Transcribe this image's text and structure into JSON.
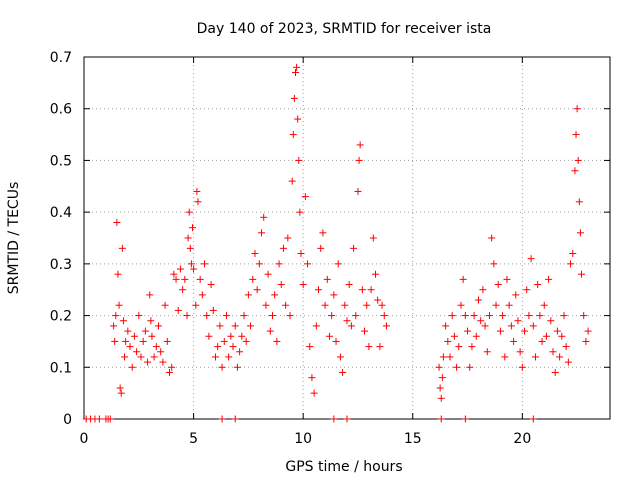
{
  "chart_data": {
    "type": "scatter",
    "title": "Day 140 of 2023, SRMTID for receiver ista",
    "xlabel": "GPS time / hours",
    "ylabel": "SRMTID / TECUs",
    "xlim": [
      0,
      24
    ],
    "ylim": [
      0,
      0.7
    ],
    "xticks": [
      "0",
      "5",
      "10",
      "15",
      "20"
    ],
    "yticks": [
      "0",
      "0.1",
      "0.2",
      "0.3",
      "0.4",
      "0.5",
      "0.6",
      "0.7"
    ],
    "grid": true,
    "marker": "+",
    "color": "#ff0000",
    "series": [
      {
        "name": "SRMTID",
        "points": [
          [
            0.1,
            0
          ],
          [
            0.3,
            0
          ],
          [
            0.5,
            0
          ],
          [
            0.7,
            0
          ],
          [
            1.0,
            0
          ],
          [
            1.1,
            0
          ],
          [
            1.2,
            0
          ],
          [
            1.35,
            0.18
          ],
          [
            1.4,
            0.15
          ],
          [
            1.45,
            0.2
          ],
          [
            1.5,
            0.38
          ],
          [
            1.55,
            0.28
          ],
          [
            1.6,
            0.22
          ],
          [
            1.65,
            0.06
          ],
          [
            1.7,
            0.05
          ],
          [
            1.75,
            0.33
          ],
          [
            1.8,
            0.19
          ],
          [
            1.85,
            0.12
          ],
          [
            1.9,
            0.15
          ],
          [
            2.0,
            0.17
          ],
          [
            2.1,
            0.14
          ],
          [
            2.2,
            0.1
          ],
          [
            2.3,
            0.16
          ],
          [
            2.4,
            0.13
          ],
          [
            2.5,
            0.2
          ],
          [
            2.6,
            0.12
          ],
          [
            2.7,
            0.15
          ],
          [
            2.8,
            0.17
          ],
          [
            2.9,
            0.11
          ],
          [
            3.0,
            0.24
          ],
          [
            3.05,
            0.19
          ],
          [
            3.1,
            0.16
          ],
          [
            3.2,
            0.12
          ],
          [
            3.3,
            0.14
          ],
          [
            3.4,
            0.18
          ],
          [
            3.5,
            0.13
          ],
          [
            3.6,
            0.11
          ],
          [
            3.7,
            0.22
          ],
          [
            3.8,
            0.15
          ],
          [
            3.9,
            0.09
          ],
          [
            4.0,
            0.1
          ],
          [
            4.1,
            0.28
          ],
          [
            4.2,
            0.27
          ],
          [
            4.3,
            0.21
          ],
          [
            4.4,
            0.29
          ],
          [
            4.5,
            0.25
          ],
          [
            4.6,
            0.27
          ],
          [
            4.7,
            0.2
          ],
          [
            4.75,
            0.35
          ],
          [
            4.8,
            0.4
          ],
          [
            4.85,
            0.33
          ],
          [
            4.9,
            0.3
          ],
          [
            4.95,
            0.37
          ],
          [
            5.0,
            0.29
          ],
          [
            5.1,
            0.22
          ],
          [
            5.15,
            0.44
          ],
          [
            5.2,
            0.42
          ],
          [
            5.3,
            0.27
          ],
          [
            5.4,
            0.24
          ],
          [
            5.5,
            0.3
          ],
          [
            5.6,
            0.2
          ],
          [
            5.7,
            0.16
          ],
          [
            5.8,
            0.26
          ],
          [
            5.9,
            0.21
          ],
          [
            6.0,
            0.12
          ],
          [
            6.1,
            0.14
          ],
          [
            6.2,
            0.18
          ],
          [
            6.3,
            0.1
          ],
          [
            6.4,
            0.15
          ],
          [
            6.5,
            0.2
          ],
          [
            6.6,
            0.12
          ],
          [
            6.7,
            0.16
          ],
          [
            6.8,
            0.14
          ],
          [
            6.9,
            0.18
          ],
          [
            7.0,
            0.1
          ],
          [
            7.1,
            0.13
          ],
          [
            7.2,
            0.16
          ],
          [
            7.3,
            0.2
          ],
          [
            7.4,
            0.15
          ],
          [
            7.5,
            0.24
          ],
          [
            7.6,
            0.18
          ],
          [
            7.7,
            0.27
          ],
          [
            7.8,
            0.32
          ],
          [
            7.9,
            0.25
          ],
          [
            8.0,
            0.3
          ],
          [
            8.1,
            0.36
          ],
          [
            8.2,
            0.39
          ],
          [
            8.3,
            0.22
          ],
          [
            8.4,
            0.28
          ],
          [
            8.5,
            0.17
          ],
          [
            8.6,
            0.2
          ],
          [
            8.7,
            0.24
          ],
          [
            8.8,
            0.15
          ],
          [
            8.9,
            0.3
          ],
          [
            9.0,
            0.26
          ],
          [
            9.1,
            0.33
          ],
          [
            9.2,
            0.22
          ],
          [
            9.3,
            0.35
          ],
          [
            9.4,
            0.2
          ],
          [
            9.5,
            0.46
          ],
          [
            9.55,
            0.55
          ],
          [
            9.6,
            0.62
          ],
          [
            9.65,
            0.67
          ],
          [
            9.7,
            0.68
          ],
          [
            9.75,
            0.58
          ],
          [
            9.8,
            0.5
          ],
          [
            9.85,
            0.4
          ],
          [
            9.9,
            0.32
          ],
          [
            10.0,
            0.26
          ],
          [
            10.1,
            0.43
          ],
          [
            10.2,
            0.3
          ],
          [
            10.3,
            0.14
          ],
          [
            10.4,
            0.08
          ],
          [
            10.5,
            0.05
          ],
          [
            10.6,
            0.18
          ],
          [
            10.7,
            0.25
          ],
          [
            10.8,
            0.33
          ],
          [
            10.9,
            0.36
          ],
          [
            11.0,
            0.22
          ],
          [
            11.1,
            0.27
          ],
          [
            11.2,
            0.16
          ],
          [
            11.3,
            0.2
          ],
          [
            11.4,
            0.24
          ],
          [
            11.5,
            0.15
          ],
          [
            11.6,
            0.3
          ],
          [
            11.7,
            0.12
          ],
          [
            11.8,
            0.09
          ],
          [
            11.9,
            0.22
          ],
          [
            12.0,
            0.19
          ],
          [
            12.1,
            0.26
          ],
          [
            12.2,
            0.18
          ],
          [
            12.3,
            0.33
          ],
          [
            12.4,
            0.2
          ],
          [
            12.5,
            0.44
          ],
          [
            12.55,
            0.5
          ],
          [
            12.6,
            0.53
          ],
          [
            12.7,
            0.25
          ],
          [
            12.8,
            0.17
          ],
          [
            12.9,
            0.22
          ],
          [
            13.0,
            0.14
          ],
          [
            13.1,
            0.25
          ],
          [
            13.2,
            0.35
          ],
          [
            13.3,
            0.28
          ],
          [
            13.4,
            0.23
          ],
          [
            13.5,
            0.14
          ],
          [
            13.6,
            0.22
          ],
          [
            13.7,
            0.2
          ],
          [
            13.8,
            0.18
          ],
          [
            16.2,
            0.1
          ],
          [
            16.25,
            0.06
          ],
          [
            16.3,
            0.04
          ],
          [
            16.35,
            0.08
          ],
          [
            16.4,
            0.12
          ],
          [
            16.5,
            0.18
          ],
          [
            16.6,
            0.15
          ],
          [
            16.7,
            0.12
          ],
          [
            16.8,
            0.2
          ],
          [
            16.9,
            0.16
          ],
          [
            17.0,
            0.1
          ],
          [
            17.1,
            0.14
          ],
          [
            17.2,
            0.22
          ],
          [
            17.3,
            0.27
          ],
          [
            17.4,
            0.2
          ],
          [
            17.5,
            0.17
          ],
          [
            17.6,
            0.1
          ],
          [
            17.7,
            0.14
          ],
          [
            17.8,
            0.2
          ],
          [
            17.9,
            0.16
          ],
          [
            18.0,
            0.23
          ],
          [
            18.1,
            0.19
          ],
          [
            18.2,
            0.25
          ],
          [
            18.3,
            0.18
          ],
          [
            18.4,
            0.13
          ],
          [
            18.5,
            0.2
          ],
          [
            18.6,
            0.35
          ],
          [
            18.7,
            0.3
          ],
          [
            18.8,
            0.22
          ],
          [
            18.9,
            0.26
          ],
          [
            19.0,
            0.17
          ],
          [
            19.1,
            0.2
          ],
          [
            19.2,
            0.12
          ],
          [
            19.3,
            0.27
          ],
          [
            19.4,
            0.22
          ],
          [
            19.5,
            0.18
          ],
          [
            19.6,
            0.15
          ],
          [
            19.7,
            0.24
          ],
          [
            19.8,
            0.19
          ],
          [
            19.9,
            0.13
          ],
          [
            20.0,
            0.1
          ],
          [
            20.1,
            0.17
          ],
          [
            20.2,
            0.25
          ],
          [
            20.3,
            0.2
          ],
          [
            20.4,
            0.31
          ],
          [
            20.5,
            0.18
          ],
          [
            20.6,
            0.12
          ],
          [
            20.7,
            0.26
          ],
          [
            20.8,
            0.2
          ],
          [
            20.9,
            0.15
          ],
          [
            21.0,
            0.22
          ],
          [
            21.1,
            0.16
          ],
          [
            21.2,
            0.27
          ],
          [
            21.3,
            0.19
          ],
          [
            21.4,
            0.13
          ],
          [
            21.5,
            0.09
          ],
          [
            21.6,
            0.17
          ],
          [
            21.7,
            0.12
          ],
          [
            21.8,
            0.16
          ],
          [
            21.9,
            0.2
          ],
          [
            22.0,
            0.14
          ],
          [
            22.1,
            0.11
          ],
          [
            22.2,
            0.3
          ],
          [
            22.3,
            0.32
          ],
          [
            22.4,
            0.48
          ],
          [
            22.45,
            0.55
          ],
          [
            22.5,
            0.6
          ],
          [
            22.55,
            0.5
          ],
          [
            22.6,
            0.42
          ],
          [
            22.65,
            0.36
          ],
          [
            22.7,
            0.28
          ],
          [
            22.8,
            0.2
          ],
          [
            22.9,
            0.15
          ],
          [
            23.0,
            0.17
          ],
          [
            6.3,
            0
          ],
          [
            6.9,
            0
          ],
          [
            11.4,
            0
          ],
          [
            12.0,
            0
          ],
          [
            16.3,
            0
          ],
          [
            17.4,
            0
          ],
          [
            20.5,
            0
          ]
        ]
      }
    ]
  }
}
